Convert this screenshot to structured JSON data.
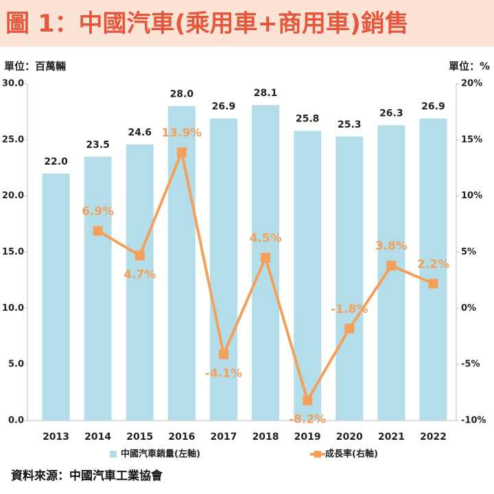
{
  "chart_data": {
    "type": "bar_line",
    "title": "圖 1：中國汽車(乘用車+商用車)銷售",
    "y_unit": "單位：百萬輛",
    "y2_unit": "單位：%",
    "source": "資料來源：中國汽車工業協會",
    "categories": [
      "2013",
      "2014",
      "2015",
      "2016",
      "2017",
      "2018",
      "2019",
      "2020",
      "2021",
      "2022"
    ],
    "series": [
      {
        "name": "中國汽車銷量(左軸)",
        "type": "bar",
        "color": "#b3dde8",
        "values": [
          22.0,
          23.5,
          24.6,
          28.0,
          26.9,
          28.1,
          25.8,
          25.3,
          26.3,
          26.9
        ],
        "value_labels": [
          "22.0",
          "23.5",
          "24.6",
          "28.0",
          "26.9",
          "28.1",
          "25.8",
          "25.3",
          "26.3",
          "26.9"
        ]
      },
      {
        "name": "成長率(右軸)",
        "type": "line",
        "axis": "y2",
        "color": "#f4a05a",
        "values": [
          null,
          6.9,
          4.7,
          13.9,
          -4.1,
          4.5,
          -8.2,
          -1.8,
          3.8,
          2.2
        ],
        "value_labels": [
          null,
          "6.9%",
          "4.7%",
          "13.9%",
          "-4.1%",
          "4.5%",
          "-8.2%",
          "-1.8%",
          "3.8%",
          "2.2%"
        ]
      }
    ],
    "ylim": [
      0,
      30
    ],
    "yticks": [
      {
        "value": 0,
        "label": "0.0"
      },
      {
        "value": 5,
        "label": "5.0"
      },
      {
        "value": 10,
        "label": "10.0"
      },
      {
        "value": 15,
        "label": "15.0"
      },
      {
        "value": 20,
        "label": "20.0"
      },
      {
        "value": 25,
        "label": "25.0"
      },
      {
        "value": 30,
        "label": "30.0"
      }
    ],
    "y2lim": [
      -10,
      20
    ],
    "y2ticks": [
      {
        "value": -10,
        "label": "-10%"
      },
      {
        "value": -5,
        "label": "-5%"
      },
      {
        "value": 0,
        "label": "0%"
      },
      {
        "value": 5,
        "label": "5%"
      },
      {
        "value": 10,
        "label": "10%"
      },
      {
        "value": 15,
        "label": "15%"
      },
      {
        "value": 20,
        "label": "20%"
      }
    ]
  }
}
